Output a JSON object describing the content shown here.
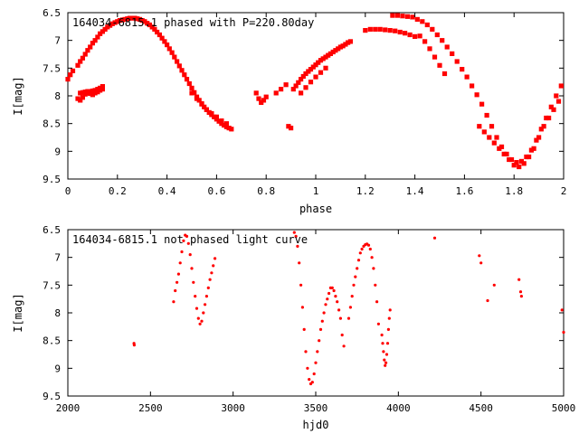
{
  "chart_data": [
    {
      "type": "scatter",
      "title": "164034-6815.1 phased with P=220.80day",
      "xlabel": "phase",
      "ylabel": "I[mag]",
      "xlim": [
        0,
        2
      ],
      "ylim": [
        9.5,
        6.5
      ],
      "y_inverted": true,
      "grid": false,
      "marker_color": "#ff0000",
      "x_ticks": [
        0,
        0.2,
        0.4,
        0.6,
        0.8,
        1,
        1.2,
        1.4,
        1.6,
        1.8,
        2
      ],
      "x_tick_labels": [
        "0",
        "0.2",
        "0.4",
        "0.6",
        "0.8",
        "1",
        "1.2",
        "1.4",
        "1.6",
        "1.8",
        "2"
      ],
      "y_ticks": [
        6.5,
        7,
        7.5,
        8,
        8.5,
        9,
        9.5
      ],
      "y_tick_labels": [
        "6.5",
        "7",
        "7.5",
        "8",
        "8.5",
        "9",
        "9.5"
      ],
      "series": [
        {
          "x": [
            0.0,
            0.01,
            0.02,
            0.04,
            0.05,
            0.06,
            0.07,
            0.08,
            0.09,
            0.1,
            0.11,
            0.12,
            0.13,
            0.14,
            0.15,
            0.16,
            0.17,
            0.18,
            0.19,
            0.2,
            0.21,
            0.22,
            0.23,
            0.24,
            0.25,
            0.26,
            0.27,
            0.28,
            0.29,
            0.3,
            0.31,
            0.32,
            0.33,
            0.34,
            0.35,
            0.36,
            0.37,
            0.38,
            0.39,
            0.4,
            0.41,
            0.42,
            0.43,
            0.44,
            0.45,
            0.46,
            0.47,
            0.48,
            0.49,
            0.5,
            0.51,
            0.52,
            0.53,
            0.54,
            0.55,
            0.56,
            0.57,
            0.58,
            0.59,
            0.6,
            0.61,
            0.62,
            0.63,
            0.64,
            0.65,
            0.66,
            0.05,
            0.06,
            0.07,
            0.08,
            0.09,
            0.1,
            0.11,
            0.12,
            0.13,
            0.14,
            0.04,
            0.05,
            0.06,
            0.07,
            0.08,
            0.09,
            0.1,
            0.11,
            0.12,
            0.13,
            0.14,
            0.5,
            0.52,
            0.54,
            0.56,
            0.58,
            0.6,
            0.62,
            0.64,
            0.76,
            0.77,
            0.78,
            0.79,
            0.8,
            0.84,
            0.86,
            0.88,
            0.89,
            0.9,
            0.91,
            0.92,
            0.93,
            0.94,
            0.95,
            0.96,
            0.97,
            0.98,
            0.99,
            1.0,
            1.01,
            1.02,
            1.03,
            1.04,
            1.05,
            1.06,
            1.07,
            1.08,
            1.09,
            1.1,
            1.11,
            1.12,
            1.13,
            1.14,
            0.94,
            0.96,
            0.98,
            1.0,
            1.02,
            1.04,
            1.2,
            1.22,
            1.24,
            1.26,
            1.28,
            1.3,
            1.32,
            1.34,
            1.36,
            1.38,
            1.4,
            1.31,
            1.33,
            1.35,
            1.37,
            1.39,
            1.41,
            1.43,
            1.45,
            1.47,
            1.49,
            1.51,
            1.53,
            1.55,
            1.57,
            1.59,
            1.61,
            1.63,
            1.65,
            1.67,
            1.69,
            1.71,
            1.73,
            1.75,
            1.77,
            1.79,
            1.81,
            1.83,
            1.85,
            1.87,
            1.89,
            1.91,
            1.93,
            1.95,
            1.97,
            1.99,
            1.42,
            1.44,
            1.46,
            1.48,
            1.5,
            1.52,
            1.66,
            1.68,
            1.7,
            1.72,
            1.74,
            1.76,
            1.78,
            1.8,
            1.82,
            1.84,
            1.86,
            1.88,
            1.9,
            1.92,
            1.94,
            1.96,
            1.98
          ],
          "y": [
            7.7,
            7.62,
            7.55,
            7.45,
            7.38,
            7.32,
            7.25,
            7.18,
            7.12,
            7.05,
            7.0,
            6.94,
            6.88,
            6.84,
            6.8,
            6.76,
            6.73,
            6.7,
            6.68,
            6.66,
            6.64,
            6.63,
            6.62,
            6.61,
            6.6,
            6.6,
            6.6,
            6.61,
            6.62,
            6.64,
            6.66,
            6.69,
            6.72,
            6.76,
            6.8,
            6.85,
            6.9,
            6.96,
            7.02,
            7.08,
            7.15,
            7.22,
            7.3,
            7.38,
            7.46,
            7.54,
            7.62,
            7.7,
            7.78,
            7.86,
            7.94,
            8.02,
            8.08,
            8.14,
            8.2,
            8.25,
            8.3,
            8.34,
            8.38,
            8.42,
            8.46,
            8.5,
            8.53,
            8.56,
            8.58,
            8.6,
            7.95,
            7.94,
            7.93,
            7.92,
            7.92,
            7.91,
            7.9,
            7.88,
            7.86,
            7.83,
            8.05,
            8.08,
            8.03,
            7.97,
            7.95,
            7.96,
            7.98,
            7.95,
            7.93,
            7.9,
            7.88,
            7.95,
            8.05,
            8.15,
            8.25,
            8.32,
            8.38,
            8.45,
            8.5,
            7.95,
            8.05,
            8.12,
            8.08,
            8.02,
            7.95,
            7.88,
            7.8,
            8.55,
            8.58,
            7.88,
            7.82,
            7.76,
            7.7,
            7.65,
            7.6,
            7.56,
            7.52,
            7.48,
            7.44,
            7.4,
            7.36,
            7.33,
            7.3,
            7.27,
            7.24,
            7.21,
            7.18,
            7.15,
            7.12,
            7.1,
            7.07,
            7.04,
            7.02,
            7.95,
            7.85,
            7.75,
            7.66,
            7.58,
            7.5,
            6.82,
            6.8,
            6.8,
            6.8,
            6.81,
            6.82,
            6.83,
            6.85,
            6.87,
            6.9,
            6.93,
            6.55,
            6.55,
            6.56,
            6.57,
            6.58,
            6.62,
            6.66,
            6.72,
            6.8,
            6.9,
            7.0,
            7.12,
            7.24,
            7.38,
            7.52,
            7.66,
            7.82,
            7.98,
            8.15,
            8.35,
            8.55,
            8.75,
            8.92,
            9.05,
            9.15,
            9.2,
            9.18,
            9.1,
            8.98,
            8.8,
            8.6,
            8.4,
            8.2,
            8.0,
            7.82,
            6.92,
            7.02,
            7.15,
            7.3,
            7.45,
            7.6,
            8.55,
            8.65,
            8.75,
            8.85,
            8.95,
            9.05,
            9.15,
            9.25,
            9.28,
            9.22,
            9.1,
            8.95,
            8.75,
            8.55,
            8.4,
            8.25,
            8.1
          ]
        }
      ]
    },
    {
      "type": "scatter",
      "title": "164034-6815.1 not phased light curve",
      "xlabel": "hjd0",
      "ylabel": "I[mag]",
      "xlim": [
        2000,
        5000
      ],
      "ylim": [
        9.5,
        6.5
      ],
      "y_inverted": true,
      "grid": false,
      "marker_color": "#ff0000",
      "x_ticks": [
        2000,
        2500,
        3000,
        3500,
        4000,
        4500,
        5000
      ],
      "x_tick_labels": [
        "2000",
        "2500",
        "3000",
        "3500",
        "4000",
        "4500",
        "5000"
      ],
      "y_ticks": [
        6.5,
        7,
        7.5,
        8,
        8.5,
        9,
        9.5
      ],
      "y_tick_labels": [
        "6.5",
        "7",
        "7.5",
        "8",
        "8.5",
        "9",
        "9.5"
      ],
      "series": [
        {
          "x": [
            2400,
            2402,
            2640,
            2650,
            2660,
            2670,
            2680,
            2690,
            2700,
            2710,
            2720,
            2730,
            2740,
            2750,
            2760,
            2770,
            2780,
            2790,
            2800,
            2810,
            2820,
            2830,
            2840,
            2850,
            2860,
            2870,
            2880,
            2890,
            3370,
            3380,
            3390,
            3400,
            3410,
            3420,
            3430,
            3440,
            3450,
            3460,
            3470,
            3480,
            3490,
            3500,
            3510,
            3520,
            3530,
            3540,
            3550,
            3560,
            3570,
            3580,
            3590,
            3600,
            3610,
            3620,
            3630,
            3640,
            3650,
            3660,
            3670,
            3700,
            3710,
            3720,
            3730,
            3740,
            3750,
            3760,
            3770,
            3780,
            3790,
            3800,
            3810,
            3820,
            3830,
            3840,
            3850,
            3860,
            3870,
            3880,
            3900,
            3905,
            3910,
            3915,
            3920,
            3925,
            3930,
            3935,
            3940,
            3945,
            3950,
            4220,
            4490,
            4500,
            4540,
            4580,
            4730,
            4740,
            4745,
            4990,
            5000
          ],
          "y": [
            8.55,
            8.58,
            7.8,
            7.6,
            7.45,
            7.3,
            7.1,
            6.9,
            6.7,
            6.6,
            6.62,
            6.75,
            6.95,
            7.2,
            7.45,
            7.7,
            7.92,
            8.1,
            8.2,
            8.15,
            8.0,
            7.85,
            7.7,
            7.55,
            7.4,
            7.28,
            7.15,
            7.02,
            6.55,
            6.62,
            6.8,
            7.1,
            7.5,
            7.9,
            8.3,
            8.7,
            9.0,
            9.2,
            9.28,
            9.25,
            9.1,
            8.9,
            8.7,
            8.5,
            8.3,
            8.15,
            8.0,
            7.85,
            7.75,
            7.65,
            7.55,
            7.55,
            7.6,
            7.7,
            7.8,
            7.95,
            8.1,
            8.4,
            8.6,
            8.1,
            7.9,
            7.7,
            7.5,
            7.35,
            7.2,
            7.05,
            6.92,
            6.85,
            6.8,
            6.77,
            6.76,
            6.78,
            6.85,
            7.0,
            7.2,
            7.5,
            7.8,
            8.2,
            8.4,
            8.55,
            8.7,
            8.85,
            8.95,
            8.9,
            8.75,
            8.55,
            8.3,
            8.1,
            7.95,
            6.65,
            6.97,
            7.1,
            7.78,
            7.5,
            7.4,
            7.62,
            7.7,
            7.95,
            8.35
          ]
        }
      ]
    }
  ]
}
